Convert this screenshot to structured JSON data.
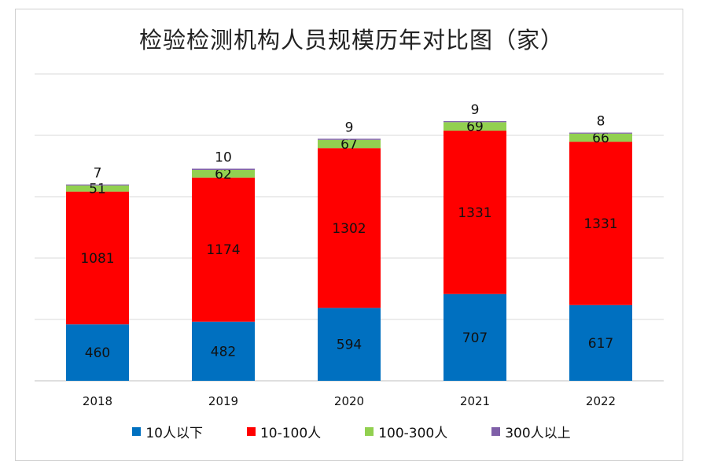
{
  "chart_data": {
    "type": "bar",
    "stacked": true,
    "title": "检验检测机构人员规模历年对比图（家）",
    "categories": [
      "2018",
      "2019",
      "2020",
      "2021",
      "2022"
    ],
    "series": [
      {
        "name": "10人以下",
        "color": "#0070c0",
        "values": [
          460,
          482,
          594,
          707,
          617
        ]
      },
      {
        "name": "10-100人",
        "color": "#ff0000",
        "values": [
          1081,
          1174,
          1302,
          1331,
          1331
        ]
      },
      {
        "name": "100-300人",
        "color": "#92d050",
        "values": [
          51,
          62,
          67,
          69,
          66
        ]
      },
      {
        "name": "300人以上",
        "color": "#7f5fa8",
        "values": [
          7,
          10,
          9,
          9,
          8
        ]
      }
    ],
    "ylim": [
      0,
      2500
    ],
    "grid": true,
    "legend_position": "bottom"
  }
}
